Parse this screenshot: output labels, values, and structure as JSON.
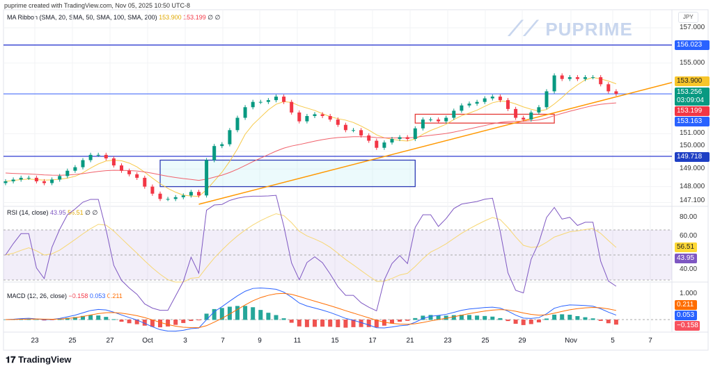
{
  "header": {
    "credit": "puprime created with TradingView.com, Nov 05, 2025 10:50 UTC-8"
  },
  "legend": {
    "ma": "MA Ribbon (SMA, 20, SMA, 50, SMA, 100, SMA, 200)",
    "ma_v1": "153.900",
    "ma_v2": "153.199",
    "ma_z": "∅ ∅",
    "rsi": "RSI (14, close)",
    "rsi_v1": "43.95",
    "rsi_v2": "56.51",
    "rsi_z": "∅ ∅",
    "macd": "MACD (12, 26, close)",
    "macd_v1": "−0.158",
    "macd_v2": "0.053",
    "macd_v3": "0.211"
  },
  "watermark": "PUPRIME",
  "footer": {
    "brand": "TradingView"
  },
  "colors": {
    "up": "#089981",
    "down": "#f23645",
    "ma_fast": "#f7c948",
    "ma_slow": "#f0606a",
    "rsi": "#7e57c2",
    "hline": "#2962ff",
    "trend": "#ff9800"
  },
  "chart_data": {
    "type": "candlestick",
    "currency": "JPY",
    "x_ticks": [
      "23",
      "25",
      "27",
      "Oct",
      "3",
      "7",
      "9",
      "11",
      "15",
      "17",
      "21",
      "23",
      "25",
      "29",
      "Nov",
      "5",
      "7"
    ],
    "price_ticks": [
      "157.000",
      "155.000",
      "151.000",
      "150.000",
      "149.000",
      "148.000",
      "147.100"
    ],
    "price_range": [
      146.9,
      157.7
    ],
    "closes": [
      148.3,
      148.4,
      148.5,
      148.5,
      148.3,
      148.2,
      148.4,
      148.6,
      148.9,
      149.1,
      149.5,
      149.8,
      149.8,
      149.6,
      149.2,
      148.9,
      148.7,
      148.5,
      148.0,
      147.6,
      147.3,
      147.3,
      147.4,
      147.5,
      147.7,
      147.5,
      149.5,
      150.3,
      150.4,
      151.2,
      151.9,
      152.5,
      152.8,
      152.8,
      152.9,
      153.1,
      152.8,
      152.2,
      151.7,
      152.0,
      152.1,
      152.0,
      151.8,
      151.5,
      151.2,
      151.2,
      150.9,
      150.6,
      150.2,
      150.5,
      150.7,
      150.8,
      150.7,
      151.3,
      151.8,
      151.8,
      151.7,
      151.9,
      152.3,
      152.6,
      152.7,
      152.8,
      153.0,
      153.1,
      152.9,
      152.4,
      151.9,
      151.8,
      152.2,
      152.5,
      153.4,
      154.3,
      154.1,
      154.2,
      154.1,
      154.2,
      154.2,
      153.8,
      153.4,
      153.26
    ],
    "horizontal_lines": [
      156.023,
      153.256,
      149.718
    ],
    "price_labels": {
      "h1": "156.023",
      "ma_fast": "153.900",
      "last": "153.256",
      "countdown": "03:09:04",
      "ma_slow": "153.199",
      "h2": "153.163",
      "h3": "149.718"
    },
    "zones": [
      {
        "from_bar": 20,
        "to_bar": 53,
        "top": 149.5,
        "bottom": 148.0,
        "color": "blue"
      },
      {
        "from_bar": 53,
        "to_bar": 71,
        "top": 152.1,
        "bottom": 151.6,
        "color": "red"
      }
    ],
    "trendline": {
      "from": {
        "bar": 25,
        "price": 147.0
      },
      "to_bar_end": 153.9
    },
    "rsi": {
      "ticks": [
        "80.00",
        "60.00",
        "40.00"
      ],
      "band": [
        30,
        70
      ],
      "labels": [
        "56.51",
        "43.95"
      ]
    },
    "macd": {
      "ticks": [
        "1.000"
      ],
      "labels": [
        "0.211",
        "0.053",
        "−0.158"
      ]
    }
  }
}
